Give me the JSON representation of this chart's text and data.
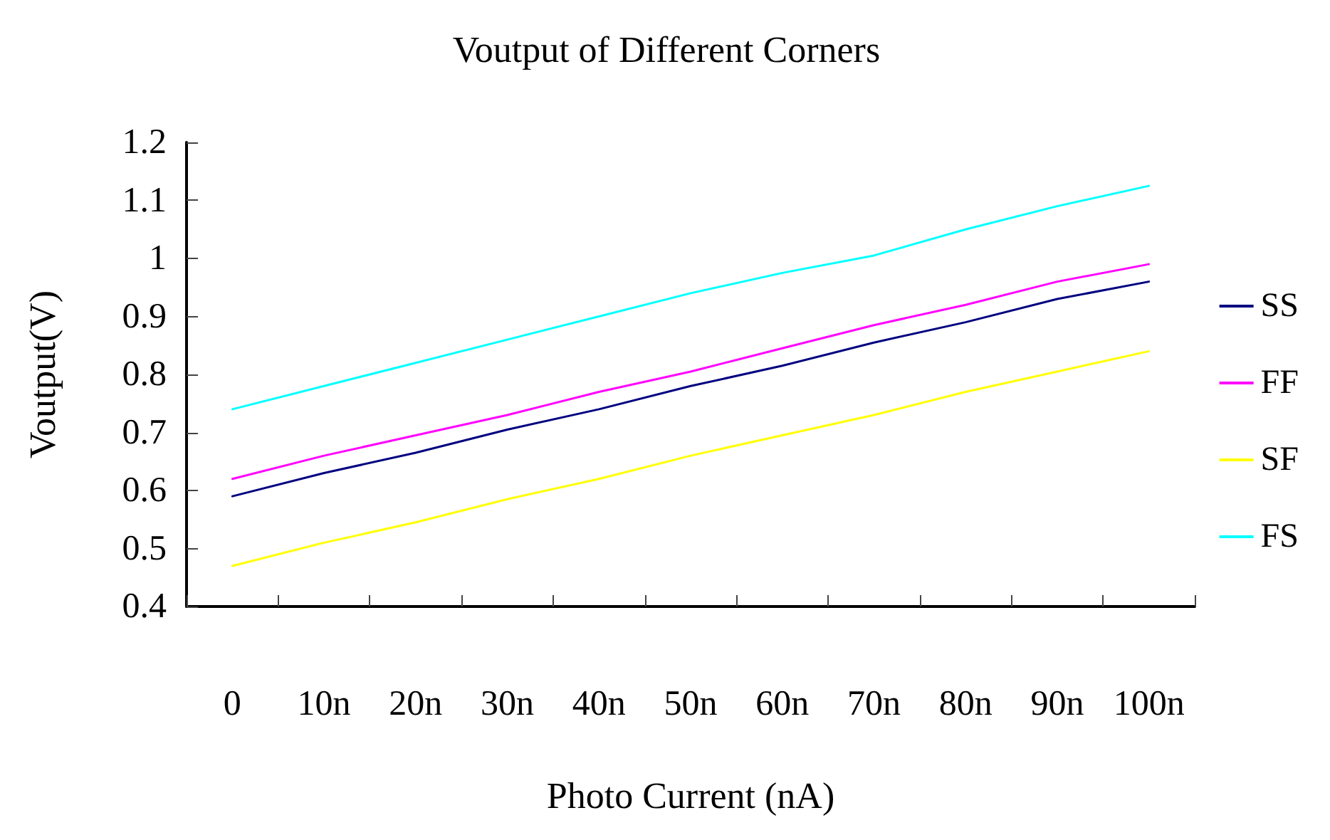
{
  "chart_data": {
    "type": "line",
    "title": "Voutput of Different Corners",
    "xlabel": "Photo Current (nA)",
    "ylabel": "Voutput(V)",
    "categories": [
      "0",
      "10n",
      "20n",
      "30n",
      "40n",
      "50n",
      "60n",
      "70n",
      "80n",
      "90n",
      "100n"
    ],
    "series": [
      {
        "name": "SS",
        "color": "#000080",
        "values": [
          0.59,
          0.63,
          0.665,
          0.705,
          0.74,
          0.78,
          0.815,
          0.855,
          0.89,
          0.93,
          0.96
        ]
      },
      {
        "name": "FF",
        "color": "#ff00ff",
        "values": [
          0.62,
          0.66,
          0.695,
          0.73,
          0.77,
          0.805,
          0.845,
          0.885,
          0.92,
          0.96,
          0.99
        ]
      },
      {
        "name": "SF",
        "color": "#ffff00",
        "values": [
          0.47,
          0.51,
          0.545,
          0.585,
          0.62,
          0.66,
          0.695,
          0.73,
          0.77,
          0.805,
          0.84
        ]
      },
      {
        "name": "FS",
        "color": "#00ffff",
        "values": [
          0.74,
          0.78,
          0.82,
          0.86,
          0.9,
          0.94,
          0.975,
          1.005,
          1.05,
          1.09,
          1.125
        ]
      }
    ],
    "ylim": [
      0.4,
      1.2
    ],
    "yticks": [
      0.4,
      0.5,
      0.6,
      0.7,
      0.8,
      0.9,
      1,
      1.1,
      1.2
    ],
    "grid": false,
    "legend": "right",
    "marker": "none",
    "line_style": "solid"
  }
}
